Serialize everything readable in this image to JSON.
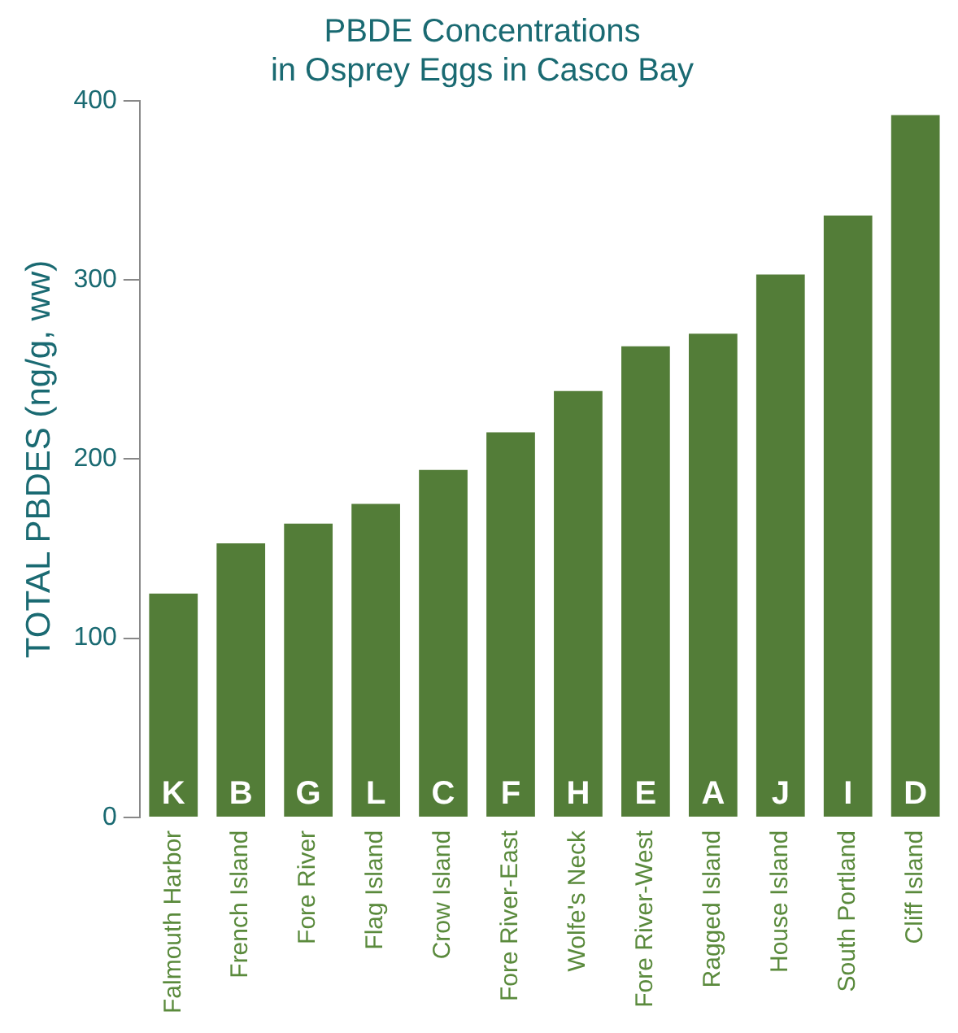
{
  "chart_data": {
    "type": "bar",
    "title": "PBDE Concentrations\nin Osprey Eggs in Casco Bay",
    "ylabel": "TOTAL PBDES (ng/g, ww)",
    "categories": [
      "Falmouth Harbor",
      "French Island",
      "Fore River",
      "Flag Island",
      "Crow Island",
      "Fore River-East",
      "Wolfe's Neck",
      "Fore River-West",
      "Ragged Island",
      "House Island",
      "South Portland",
      "Cliff Island"
    ],
    "values": [
      125,
      153,
      164,
      175,
      194,
      215,
      238,
      263,
      270,
      303,
      336,
      392
    ],
    "color": "#537d38",
    "ylim": [
      0,
      400
    ],
    "yticks": [
      0,
      100,
      200,
      300,
      400
    ],
    "grid": false,
    "legend": false,
    "annotations": [
      "K",
      "B",
      "G",
      "L",
      "C",
      "F",
      "H",
      "E",
      "A",
      "J",
      "I",
      "D"
    ]
  }
}
